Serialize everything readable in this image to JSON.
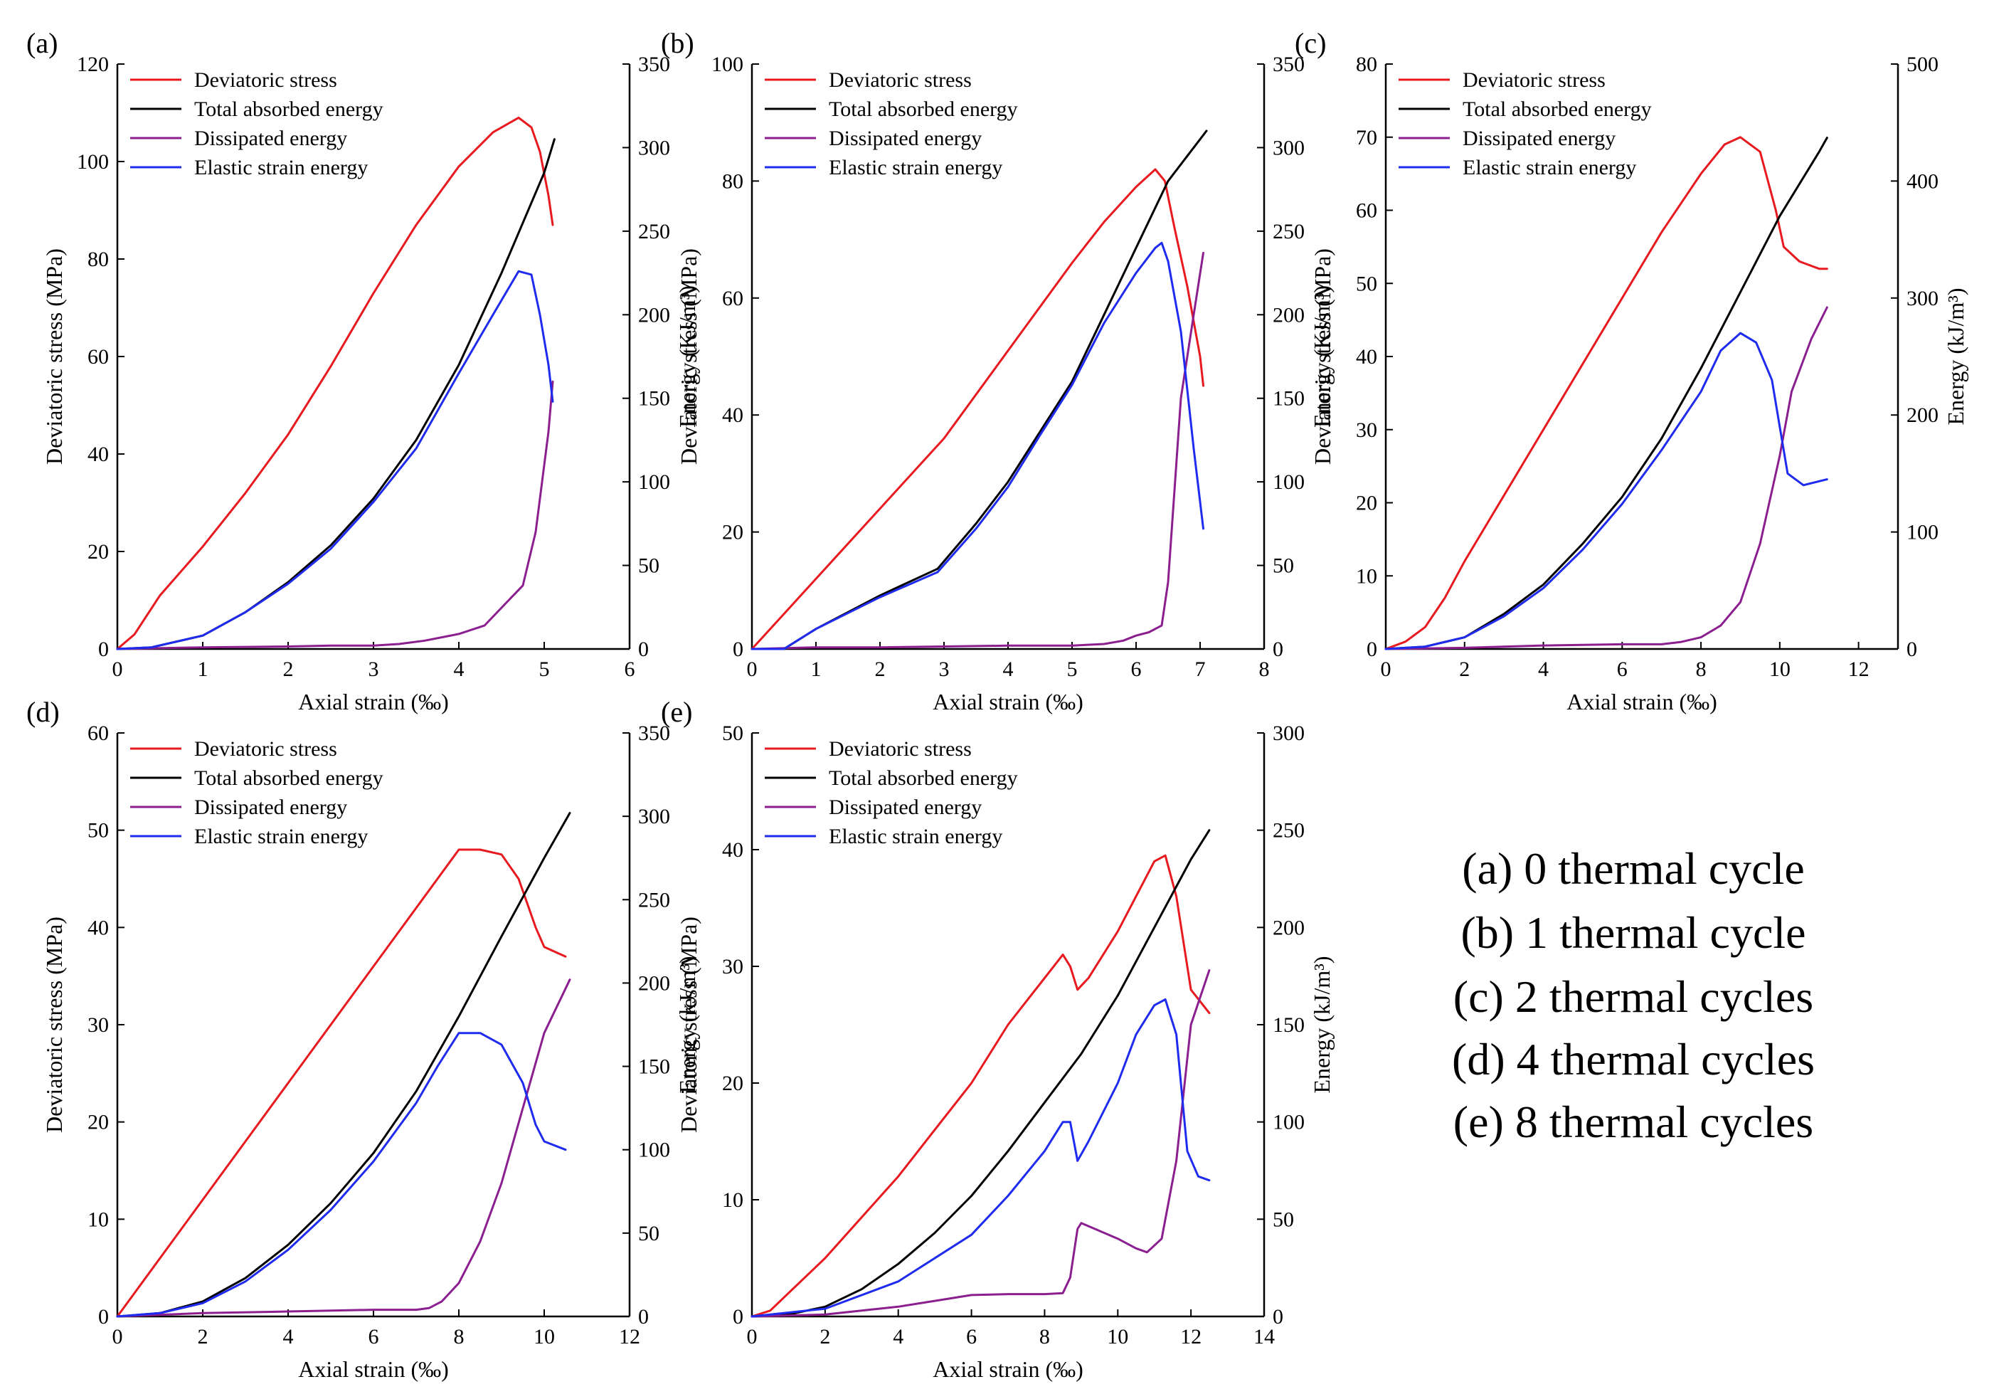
{
  "colors": {
    "stress": "#e8191f",
    "total": "#000000",
    "dissipated": "#8b1f8f",
    "elastic": "#1f2bef"
  },
  "caption": [
    "(a) 0 thermal cycle",
    "(b) 1 thermal cycle",
    "(c) 2 thermal cycles",
    "(d) 4 thermal cycles",
    "(e) 8 thermal cycles"
  ],
  "chart_data": [
    {
      "type": "line",
      "panel": "(a)",
      "xlabel": "Axial strain (‰)",
      "ylabel_left": "Deviatoric stress (MPa)",
      "ylabel_right": "Energy (KJ/m³)",
      "xlim": [
        0,
        6
      ],
      "xticks": [
        "0",
        "1",
        "2",
        "3",
        "4",
        "5",
        "6"
      ],
      "ylim_left": [
        0,
        120
      ],
      "yticks_left": [
        "0",
        "20",
        "40",
        "60",
        "80",
        "100",
        "120"
      ],
      "ylim_right": [
        0,
        350
      ],
      "yticks_right": [
        "0",
        "50",
        "100",
        "150",
        "200",
        "250",
        "300",
        "350"
      ],
      "legend": [
        "Deviatoric stress",
        "Total absorbed energy",
        "Dissipated energy",
        "Elastic strain energy"
      ],
      "series": [
        {
          "name": "Deviatoric stress",
          "axis": "left",
          "key": "stress",
          "x": [
            0,
            0.2,
            0.5,
            1,
            1.5,
            2,
            2.5,
            3,
            3.5,
            4,
            4.4,
            4.7,
            4.85,
            4.95,
            5.05,
            5.1
          ],
          "y": [
            0,
            3,
            11,
            21,
            32,
            44,
            58,
            73,
            87,
            99,
            106,
            109,
            107,
            102,
            93,
            87
          ]
        },
        {
          "name": "Total absorbed energy",
          "axis": "left2",
          "key": "total",
          "x": [
            0,
            0.4,
            1,
            1.5,
            2,
            2.5,
            3,
            3.5,
            4,
            4.5,
            5,
            5.12
          ],
          "y": [
            0,
            1,
            8,
            22,
            40,
            62,
            90,
            125,
            170,
            225,
            285,
            305
          ]
        },
        {
          "name": "Dissipated energy",
          "axis": "left2",
          "key": "dissipated",
          "x": [
            0,
            1,
            2,
            2.5,
            3,
            3.3,
            3.6,
            4,
            4.3,
            4.6,
            4.75,
            4.9,
            5,
            5.05,
            5.1
          ],
          "y": [
            0,
            1,
            1.5,
            2,
            2,
            3,
            5,
            9,
            14,
            30,
            38,
            70,
            110,
            130,
            160
          ]
        },
        {
          "name": "Elastic strain energy",
          "axis": "left2",
          "key": "elastic",
          "x": [
            0,
            0.4,
            1,
            1.5,
            2,
            2.5,
            3,
            3.5,
            4,
            4.4,
            4.7,
            4.85,
            4.95,
            5.05,
            5.1
          ],
          "y": [
            0,
            1,
            8,
            22,
            39,
            60,
            88,
            120,
            165,
            200,
            226,
            224,
            200,
            170,
            148
          ]
        }
      ]
    },
    {
      "type": "line",
      "panel": "(b)",
      "xlabel": "Axial strain (‰)",
      "ylabel_left": "Deviatoric stress (MPa)",
      "ylabel_right": "Energy (KJ/m³)",
      "xlim": [
        0,
        8
      ],
      "xticks": [
        "0",
        "1",
        "2",
        "3",
        "4",
        "5",
        "6",
        "7",
        "8"
      ],
      "ylim_left": [
        0,
        100
      ],
      "yticks_left": [
        "0",
        "20",
        "40",
        "60",
        "80",
        "100"
      ],
      "ylim_right": [
        0,
        350
      ],
      "yticks_right": [
        "0",
        "50",
        "100",
        "150",
        "200",
        "250",
        "300",
        "350"
      ],
      "legend": [
        "Deviatoric stress",
        "Total absorbed energy",
        "Dissipated energy",
        "Elastic strain energy"
      ],
      "series": [
        {
          "name": "Deviatoric stress",
          "axis": "left",
          "key": "stress",
          "x": [
            0,
            0.5,
            1,
            2,
            3,
            4,
            5,
            5.5,
            6,
            6.3,
            6.45,
            6.6,
            6.8,
            7,
            7.05
          ],
          "y": [
            0,
            6,
            12,
            24,
            36,
            51,
            66,
            73,
            79,
            82,
            80,
            72,
            62,
            50,
            45
          ]
        },
        {
          "name": "Total absorbed energy",
          "axis": "left2",
          "key": "total",
          "x": [
            0,
            0.5,
            1,
            2,
            2.9,
            3.5,
            4,
            4.5,
            5,
            5.5,
            6,
            6.5,
            7,
            7.1
          ],
          "y": [
            0,
            0,
            12,
            32,
            48,
            75,
            100,
            130,
            160,
            200,
            240,
            280,
            305,
            310
          ]
        },
        {
          "name": "Dissipated energy",
          "axis": "left2",
          "key": "dissipated",
          "x": [
            0,
            1,
            2,
            3,
            4,
            5,
            5.5,
            5.8,
            6,
            6.2,
            6.4,
            6.5,
            6.7,
            6.9,
            7.05
          ],
          "y": [
            0,
            1,
            1,
            1.5,
            2,
            2,
            3,
            5,
            8,
            10,
            14,
            40,
            150,
            200,
            237
          ]
        },
        {
          "name": "Elastic strain energy",
          "axis": "left2",
          "key": "elastic",
          "x": [
            0,
            0.5,
            1,
            2,
            2.9,
            3.5,
            4,
            4.5,
            5,
            5.5,
            6,
            6.3,
            6.4,
            6.5,
            6.7,
            6.9,
            7.05
          ],
          "y": [
            0,
            0,
            12,
            31,
            46,
            72,
            97,
            128,
            158,
            195,
            225,
            240,
            243,
            232,
            190,
            120,
            72
          ]
        }
      ]
    },
    {
      "type": "line",
      "panel": "(c)",
      "xlabel": "Axial strain  (‰)",
      "ylabel_left": "Deviatoric stress (MPa)",
      "ylabel_right": "Energy (kJ/m³)",
      "xlim": [
        0,
        13
      ],
      "xticks": [
        "0",
        "2",
        "4",
        "6",
        "8",
        "10",
        "12"
      ],
      "ylim_left": [
        0,
        80
      ],
      "yticks_left": [
        "0",
        "10",
        "20",
        "30",
        "40",
        "50",
        "60",
        "70",
        "80"
      ],
      "ylim_right": [
        0,
        500
      ],
      "yticks_right": [
        "0",
        "100",
        "200",
        "300",
        "400",
        "500"
      ],
      "legend": [
        "Deviatoric stress",
        "Total absorbed energy",
        "Dissipated energy",
        "Elastic strain energy"
      ],
      "series": [
        {
          "name": "Deviatoric stress",
          "axis": "left",
          "key": "stress",
          "x": [
            0,
            0.5,
            1,
            1.5,
            2,
            3,
            4,
            5,
            6,
            7,
            8,
            8.6,
            9,
            9.5,
            9.9,
            10.1,
            10.5,
            11,
            11.2
          ],
          "y": [
            0,
            1,
            3,
            7,
            12,
            21,
            30,
            39,
            48,
            57,
            65,
            69,
            70,
            68,
            60,
            55,
            53,
            52,
            52
          ]
        },
        {
          "name": "Total absorbed energy",
          "axis": "left2",
          "key": "total",
          "x": [
            0,
            1,
            2,
            3,
            4,
            5,
            6,
            7,
            8,
            9,
            10,
            11,
            11.2
          ],
          "y": [
            0,
            2,
            10,
            30,
            55,
            90,
            130,
            180,
            240,
            305,
            370,
            425,
            437
          ]
        },
        {
          "name": "Dissipated energy",
          "axis": "left2",
          "key": "dissipated",
          "x": [
            0,
            2,
            4,
            6,
            7,
            7.5,
            8,
            8.5,
            9,
            9.5,
            10,
            10.3,
            10.8,
            11.2
          ],
          "y": [
            0,
            1,
            3,
            4,
            4,
            6,
            10,
            20,
            40,
            90,
            165,
            220,
            265,
            292
          ]
        },
        {
          "name": "Elastic strain energy",
          "axis": "left2",
          "key": "elastic",
          "x": [
            0,
            1,
            2,
            3,
            4,
            5,
            6,
            7,
            8,
            8.5,
            9,
            9.4,
            9.8,
            10,
            10.2,
            10.6,
            11.2
          ],
          "y": [
            0,
            2,
            10,
            28,
            52,
            85,
            124,
            170,
            220,
            255,
            270,
            262,
            230,
            190,
            150,
            140,
            145
          ]
        }
      ]
    },
    {
      "type": "line",
      "panel": "(d)",
      "xlabel": "Axial strain (‰)",
      "ylabel_left": "Deviatoric stress (MPa)",
      "ylabel_right": "Energy (kJ/m³)",
      "xlim": [
        0,
        12
      ],
      "xticks": [
        "0",
        "2",
        "4",
        "6",
        "8",
        "10",
        "12"
      ],
      "ylim_left": [
        0,
        60
      ],
      "yticks_left": [
        "0",
        "10",
        "20",
        "30",
        "40",
        "50",
        "60"
      ],
      "ylim_right": [
        0,
        350
      ],
      "yticks_right": [
        "0",
        "50",
        "100",
        "150",
        "200",
        "250",
        "300",
        "350"
      ],
      "legend": [
        "Deviatoric stress",
        "Total absorbed energy",
        "Dissipated energy",
        "Elastic strain energy"
      ],
      "series": [
        {
          "name": "Deviatoric stress",
          "axis": "left",
          "key": "stress",
          "x": [
            0,
            0.5,
            1,
            2,
            3,
            4,
            5,
            6,
            7,
            7.5,
            8,
            8.5,
            9,
            9.4,
            9.8,
            10,
            10.5
          ],
          "y": [
            0,
            3,
            6,
            12,
            18,
            24,
            30,
            36,
            42,
            45,
            48,
            48,
            47.5,
            45,
            40,
            38,
            37
          ]
        },
        {
          "name": "Total absorbed energy",
          "axis": "left2",
          "key": "total",
          "x": [
            0,
            1,
            2,
            3,
            4,
            5,
            6,
            7,
            8,
            9,
            10,
            10.6
          ],
          "y": [
            0,
            2,
            9,
            23,
            43,
            68,
            98,
            135,
            180,
            228,
            275,
            302
          ]
        },
        {
          "name": "Dissipated energy",
          "axis": "left2",
          "key": "dissipated",
          "x": [
            0,
            2,
            4,
            6,
            7,
            7.3,
            7.6,
            8,
            8.5,
            9,
            9.5,
            10,
            10.6
          ],
          "y": [
            0,
            2,
            3,
            4,
            4,
            5,
            9,
            20,
            45,
            80,
            125,
            170,
            202
          ]
        },
        {
          "name": "Elastic strain energy",
          "axis": "left2",
          "key": "elastic",
          "x": [
            0,
            1,
            2,
            3,
            4,
            5,
            6,
            7,
            7.5,
            8,
            8.5,
            9,
            9.5,
            9.8,
            10,
            10.5
          ],
          "y": [
            0,
            2,
            8,
            21,
            40,
            64,
            93,
            128,
            150,
            170,
            170,
            163,
            140,
            115,
            105,
            100
          ]
        }
      ]
    },
    {
      "type": "line",
      "panel": "(e)",
      "xlabel": "Axial strain (‰)",
      "ylabel_left": "Deviatoric stress (MPa)",
      "ylabel_right": "Energy (kJ/m³)",
      "xlim": [
        0,
        14
      ],
      "xticks": [
        "0",
        "2",
        "4",
        "6",
        "8",
        "10",
        "12",
        "14"
      ],
      "ylim_left": [
        0,
        50
      ],
      "yticks_left": [
        "0",
        "10",
        "20",
        "30",
        "40",
        "50"
      ],
      "ylim_right": [
        0,
        300
      ],
      "yticks_right": [
        "0",
        "50",
        "100",
        "150",
        "200",
        "250",
        "300"
      ],
      "legend": [
        "Deviatoric stress",
        "Total absorbed energy",
        "Dissipated energy",
        "Elastic strain energy"
      ],
      "series": [
        {
          "name": "Deviatoric stress",
          "axis": "left",
          "key": "stress",
          "x": [
            0,
            0.5,
            1,
            2,
            3,
            4,
            5,
            6,
            7,
            8,
            8.5,
            8.7,
            8.9,
            9.2,
            10,
            10.5,
            11,
            11.3,
            11.6,
            12,
            12.5
          ],
          "y": [
            0,
            0.5,
            2,
            5,
            8.5,
            12,
            16,
            20,
            25,
            29,
            31,
            30,
            28,
            29,
            33,
            36,
            39,
            39.5,
            36,
            28,
            26
          ]
        },
        {
          "name": "Total absorbed energy",
          "axis": "left2",
          "key": "total",
          "x": [
            0,
            1,
            2,
            3,
            4,
            5,
            6,
            7,
            8,
            9,
            10,
            11,
            12,
            12.5
          ],
          "y": [
            0,
            1,
            5,
            14,
            27,
            43,
            62,
            85,
            110,
            135,
            165,
            200,
            235,
            250
          ]
        },
        {
          "name": "Dissipated energy",
          "axis": "left2",
          "key": "dissipated",
          "x": [
            0,
            2,
            4,
            5,
            6,
            7,
            8,
            8.5,
            8.7,
            8.9,
            9,
            9.5,
            10,
            10.5,
            10.8,
            11.2,
            11.6,
            12,
            12.5
          ],
          "y": [
            0,
            1,
            5,
            8,
            11,
            11.5,
            11.5,
            12,
            20,
            45,
            48,
            44,
            40,
            35,
            33,
            40,
            80,
            150,
            178
          ]
        },
        {
          "name": "Elastic strain energy",
          "axis": "left2",
          "key": "elastic",
          "x": [
            0,
            2,
            4,
            6,
            7,
            8,
            8.5,
            8.7,
            8.9,
            9.2,
            10,
            10.5,
            11,
            11.3,
            11.6,
            11.9,
            12.2,
            12.5
          ],
          "y": [
            0,
            4,
            18,
            42,
            62,
            85,
            100,
            100,
            80,
            90,
            120,
            145,
            160,
            163,
            145,
            85,
            72,
            70
          ]
        }
      ]
    }
  ]
}
